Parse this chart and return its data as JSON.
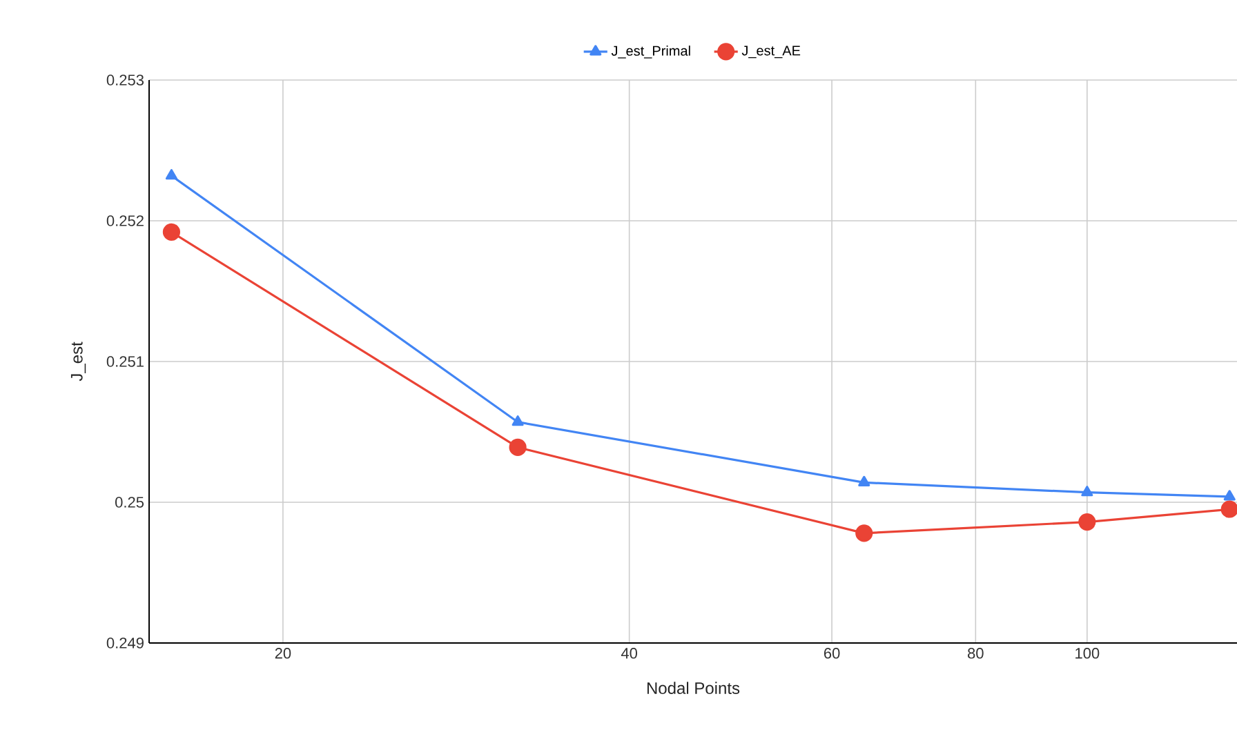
{
  "chart_data": {
    "type": "line",
    "xlabel": "Nodal Points",
    "ylabel": "J_est",
    "log": "x",
    "x": [
      16,
      32,
      64,
      100,
      133
    ],
    "series": [
      {
        "name": "J_est_Primal",
        "color": "#4285f4",
        "marker": "triangle",
        "values": [
          0.25232,
          0.25057,
          0.25014,
          0.25007,
          0.25004
        ]
      },
      {
        "name": "J_est_AE",
        "color": "#ea4335",
        "marker": "circle",
        "values": [
          0.25192,
          0.25039,
          0.24978,
          0.24986,
          0.24995
        ]
      }
    ],
    "xlim": [
      15.3,
      135
    ],
    "xticks": [
      20,
      40,
      60,
      80,
      100
    ],
    "ylim": [
      0.249,
      0.253
    ],
    "yticks": [
      0.249,
      0.25,
      0.251,
      0.252,
      0.253
    ],
    "grid": true,
    "legend": "top",
    "line_style": "solid"
  }
}
